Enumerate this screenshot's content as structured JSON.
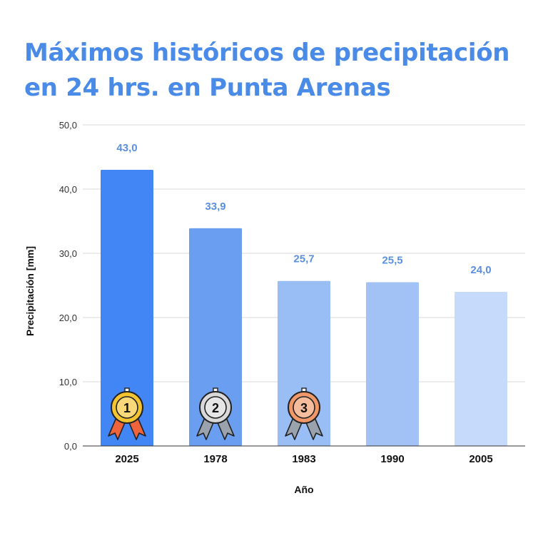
{
  "title_line1": "Máximos históricos de precipitación",
  "title_line2": "en 24 hrs. en Punta Arenas",
  "chart_data": {
    "type": "bar",
    "categories": [
      "2025",
      "1978",
      "1983",
      "1990",
      "2005"
    ],
    "values": [
      43.0,
      33.9,
      25.7,
      25.5,
      24.0
    ],
    "data_labels": [
      "43,0",
      "33,9",
      "25,7",
      "25,5",
      "24,0"
    ],
    "bar_colors": [
      "#4285f4",
      "#6a9ef0",
      "#99bdf5",
      "#a2c2f6",
      "#c6dafb"
    ],
    "label_color": "#5b8fe0",
    "xlabel": "Año",
    "ylabel": "Precipitación [mm]",
    "ylim": [
      0,
      50
    ],
    "yticks": [
      0,
      10,
      20,
      30,
      40,
      50
    ],
    "ytick_labels": [
      "0,0",
      "10,0",
      "20,0",
      "30,0",
      "40,0",
      "50,0"
    ],
    "grid": true,
    "medals": [
      {
        "rank": "1",
        "category": "2025",
        "fill": "#f4c430",
        "ribbon": "#f0643c"
      },
      {
        "rank": "2",
        "category": "1978",
        "fill": "#d9d9d9",
        "ribbon": "#9aa3ad"
      },
      {
        "rank": "3",
        "category": "1983",
        "fill": "#f0986a",
        "ribbon": "#9aa3ad"
      }
    ]
  }
}
